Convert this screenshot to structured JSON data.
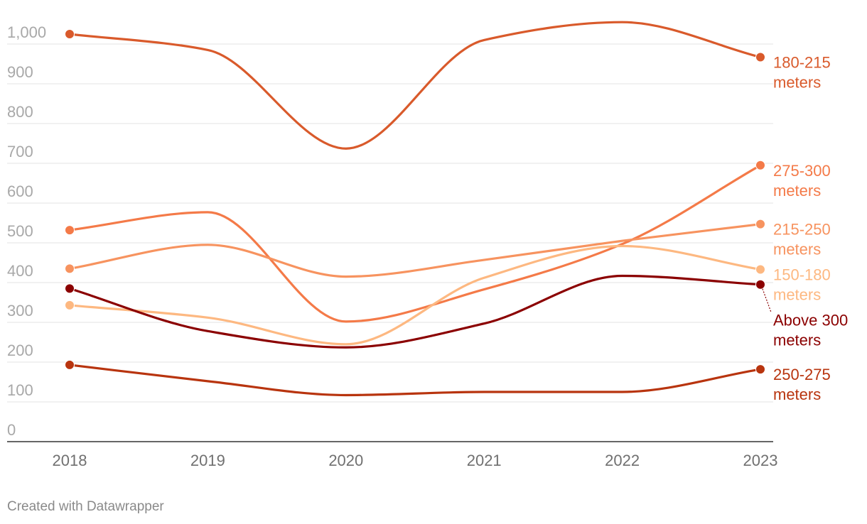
{
  "chart_data": {
    "type": "line",
    "title": "",
    "xlabel": "",
    "ylabel": "",
    "x": [
      2018,
      2019,
      2020,
      2021,
      2022,
      2023
    ],
    "ylim": [
      0,
      1000
    ],
    "yticks": [
      0,
      100,
      200,
      300,
      400,
      500,
      600,
      700,
      800,
      900,
      1000
    ],
    "ytick_labels": [
      "0",
      "100",
      "200",
      "300",
      "400",
      "500",
      "600",
      "700",
      "800",
      "900",
      "1,000"
    ],
    "grid": true,
    "series": [
      {
        "name": "180-215 meters",
        "label_lines": [
          "180-215",
          "meters"
        ],
        "color": "#d95a2b",
        "values": [
          1025,
          985,
          737,
          1010,
          1055,
          967
        ]
      },
      {
        "name": "275-300 meters",
        "label_lines": [
          "275-300",
          "meters"
        ],
        "color": "#f47a48",
        "values": [
          532,
          577,
          302,
          383,
          497,
          695
        ]
      },
      {
        "name": "215-250 meters",
        "label_lines": [
          "215-250",
          "meters"
        ],
        "color": "#f7935f",
        "values": [
          435,
          495,
          415,
          457,
          505,
          547
        ]
      },
      {
        "name": "150-180 meters",
        "label_lines": [
          "150-180",
          "meters"
        ],
        "color": "#fdb881",
        "values": [
          343,
          312,
          245,
          412,
          492,
          433
        ]
      },
      {
        "name": "Above 300 meters",
        "label_lines": [
          "Above 300",
          "meters"
        ],
        "color": "#8b0000",
        "values": [
          385,
          278,
          237,
          297,
          417,
          395
        ]
      },
      {
        "name": "250-275 meters",
        "label_lines": [
          "250-275",
          "meters"
        ],
        "color": "#b8340e",
        "values": [
          193,
          152,
          117,
          125,
          125,
          182
        ]
      }
    ]
  },
  "credit": "Created with Datawrapper"
}
